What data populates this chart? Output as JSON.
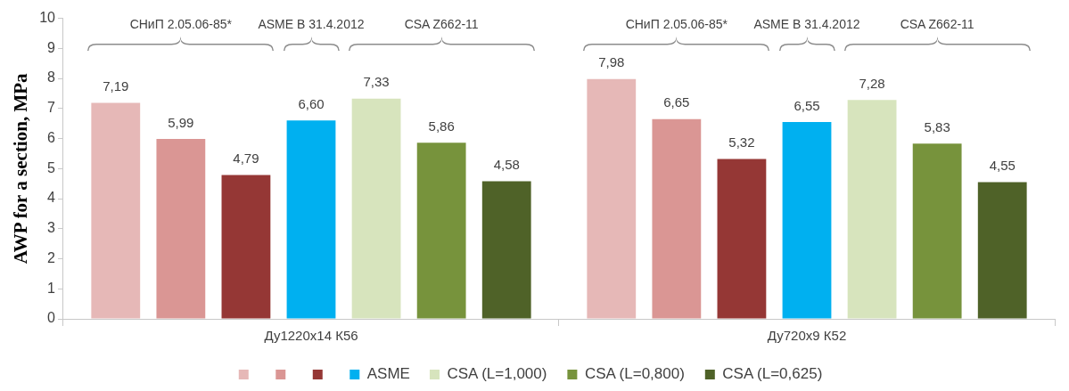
{
  "chart_data": {
    "type": "bar",
    "ylabel": "AWP for a section, MPa",
    "categories": [
      "Ду1220х14 К56",
      "Ду720х9 К52"
    ],
    "ylim": [
      0,
      10
    ],
    "yticks": [
      0,
      1,
      2,
      3,
      4,
      5,
      6,
      7,
      8,
      9,
      10
    ],
    "grid": false,
    "legend": "bottom",
    "series": [
      {
        "color": "#e6b8b7",
        "values": [
          7.19,
          7.98
        ],
        "value_labels": [
          "7,19",
          "7,98"
        ]
      },
      {
        "color": "#da9694",
        "values": [
          5.99,
          6.65
        ],
        "value_labels": [
          "5,99",
          "6,65"
        ]
      },
      {
        "color": "#953735",
        "values": [
          4.79,
          5.32
        ],
        "value_labels": [
          "4,79",
          "5,32"
        ]
      },
      {
        "name": "ASME",
        "color": "#00b0f0",
        "values": [
          6.6,
          6.55
        ],
        "value_labels": [
          "6,60",
          "6,55"
        ]
      },
      {
        "name": "CSA (L=1,000)",
        "color": "#d7e4bd",
        "values": [
          7.33,
          7.28
        ],
        "value_labels": [
          "7,33",
          "7,28"
        ]
      },
      {
        "name": "CSA (L=0,800)",
        "color": "#77933c",
        "values": [
          5.86,
          5.83
        ],
        "value_labels": [
          "5,86",
          "5,83"
        ]
      },
      {
        "name": "CSA (L=0,625)",
        "color": "#4f6228",
        "values": [
          4.58,
          4.55
        ],
        "value_labels": [
          "4,58",
          "4,55"
        ]
      }
    ],
    "annotations": [
      "СНиП 2.05.06-85*",
      "ASME B 31.4.2012",
      "CSA Z662-11",
      "СНиП 2.05.06-85*",
      "ASME B 31.4.2012",
      "CSA Z662-11"
    ]
  }
}
